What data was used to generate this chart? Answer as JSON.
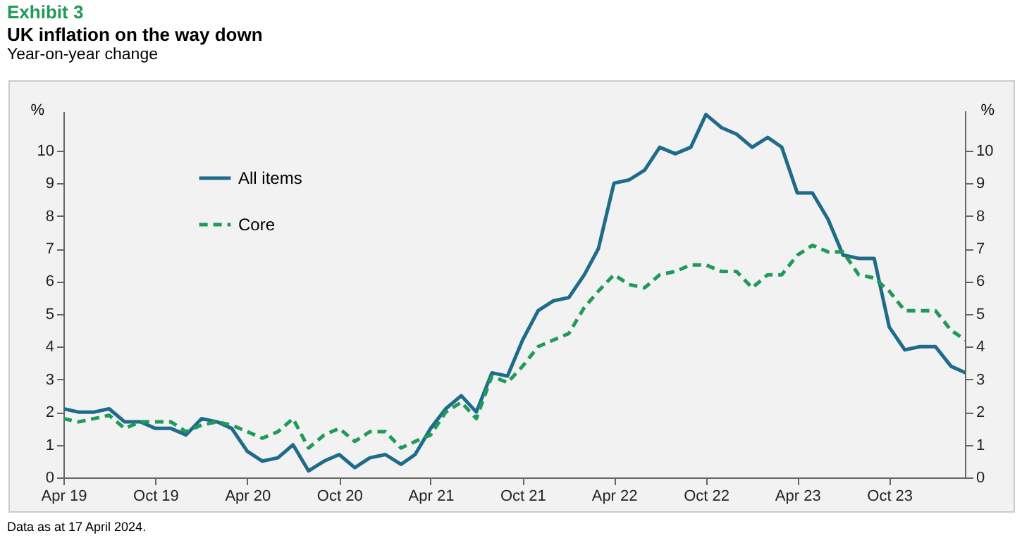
{
  "chart_data": {
    "type": "line",
    "title": "UK inflation on the way down",
    "subtitle": "Year-on-year change",
    "ylabel": "%",
    "y2label": "%",
    "annotations": [
      "Exhibit 3",
      "Data as at 17 April 2024."
    ],
    "x": [
      "2019-04",
      "2019-05",
      "2019-06",
      "2019-07",
      "2019-08",
      "2019-09",
      "2019-10",
      "2019-11",
      "2019-12",
      "2020-01",
      "2020-02",
      "2020-03",
      "2020-04",
      "2020-05",
      "2020-06",
      "2020-07",
      "2020-08",
      "2020-09",
      "2020-10",
      "2020-11",
      "2020-12",
      "2021-01",
      "2021-02",
      "2021-03",
      "2021-04",
      "2021-05",
      "2021-06",
      "2021-07",
      "2021-08",
      "2021-09",
      "2021-10",
      "2021-11",
      "2021-12",
      "2022-01",
      "2022-02",
      "2022-03",
      "2022-04",
      "2022-05",
      "2022-06",
      "2022-07",
      "2022-08",
      "2022-09",
      "2022-10",
      "2022-11",
      "2022-12",
      "2023-01",
      "2023-02",
      "2023-03",
      "2023-04",
      "2023-05",
      "2023-06",
      "2023-07",
      "2023-08",
      "2023-09",
      "2023-10",
      "2023-11",
      "2023-12",
      "2024-01",
      "2024-02",
      "2024-03"
    ],
    "series": [
      {
        "name": "All items",
        "color": "#1f6b8a",
        "line_style": "solid",
        "values": [
          2.1,
          2.0,
          2.0,
          2.1,
          1.7,
          1.7,
          1.5,
          1.5,
          1.3,
          1.8,
          1.7,
          1.5,
          0.8,
          0.5,
          0.6,
          1.0,
          0.2,
          0.5,
          0.7,
          0.3,
          0.6,
          0.7,
          0.4,
          0.7,
          1.5,
          2.1,
          2.5,
          2.0,
          3.2,
          3.1,
          4.2,
          5.1,
          5.4,
          5.5,
          6.2,
          7.0,
          9.0,
          9.1,
          9.4,
          10.1,
          9.9,
          10.1,
          11.1,
          10.7,
          10.5,
          10.1,
          10.4,
          10.1,
          8.7,
          8.7,
          7.9,
          6.8,
          6.7,
          6.7,
          4.6,
          3.9,
          4.0,
          4.0,
          3.4,
          3.2
        ]
      },
      {
        "name": "Core",
        "color": "#1f9a57",
        "line_style": "dashed",
        "values": [
          1.8,
          1.7,
          1.8,
          1.9,
          1.5,
          1.7,
          1.7,
          1.7,
          1.4,
          1.6,
          1.7,
          1.6,
          1.4,
          1.2,
          1.4,
          1.8,
          0.9,
          1.3,
          1.5,
          1.1,
          1.4,
          1.4,
          0.9,
          1.1,
          1.3,
          2.0,
          2.3,
          1.8,
          3.1,
          2.9,
          3.4,
          4.0,
          4.2,
          4.4,
          5.2,
          5.7,
          6.2,
          5.9,
          5.8,
          6.2,
          6.3,
          6.5,
          6.5,
          6.3,
          6.3,
          5.8,
          6.2,
          6.2,
          6.8,
          7.1,
          6.9,
          6.9,
          6.2,
          6.1,
          5.7,
          5.1,
          5.1,
          5.1,
          4.5,
          4.2
        ]
      }
    ],
    "xlim": [
      "2019-04",
      "2024-03"
    ],
    "xticks": [
      {
        "value": "2019-04",
        "label": "Apr 19"
      },
      {
        "value": "2019-10",
        "label": "Oct 19"
      },
      {
        "value": "2020-04",
        "label": "Apr 20"
      },
      {
        "value": "2020-10",
        "label": "Oct 20"
      },
      {
        "value": "2021-04",
        "label": "Apr 21"
      },
      {
        "value": "2021-10",
        "label": "Oct 21"
      },
      {
        "value": "2022-04",
        "label": "Apr 22"
      },
      {
        "value": "2022-10",
        "label": "Oct 22"
      },
      {
        "value": "2023-04",
        "label": "Apr 23"
      },
      {
        "value": "2023-10",
        "label": "Oct 23"
      }
    ],
    "ylim": [
      0,
      11.2
    ],
    "yticks": [
      0,
      1,
      2,
      3,
      4,
      5,
      6,
      7,
      8,
      9,
      10
    ],
    "y2lim": [
      0,
      11.2
    ],
    "y2ticks": [
      0,
      1,
      2,
      3,
      4,
      5,
      6,
      7,
      8,
      9,
      10
    ],
    "legend": "top left"
  }
}
